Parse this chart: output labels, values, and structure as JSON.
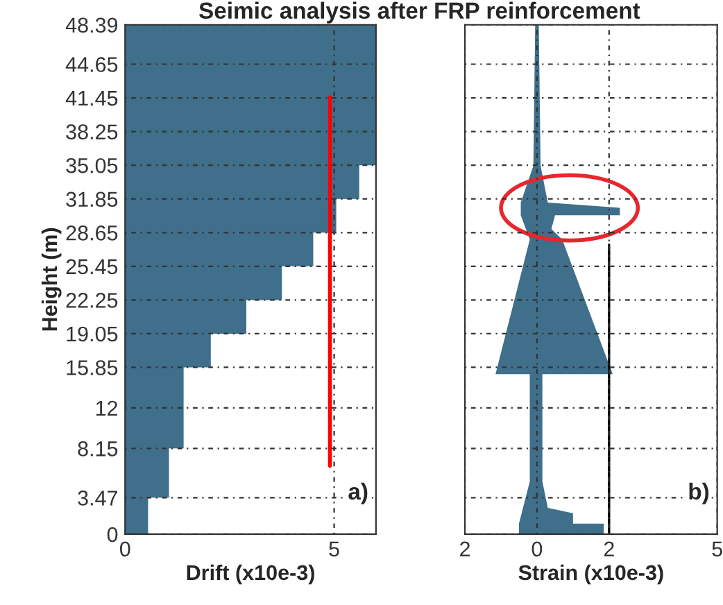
{
  "chart_data": [
    {
      "type": "area",
      "title": "Seimic analysis after FRP reinforcement",
      "xlabel": "Drift (x10e-3)",
      "ylabel": "Height (m)",
      "xlim": [
        0,
        6
      ],
      "xticks": [
        0,
        5
      ],
      "ylim": [
        0,
        48.39
      ],
      "yticks": [
        0,
        3.47,
        8.15,
        12,
        15.85,
        19.05,
        22.25,
        25.45,
        28.65,
        31.85,
        35.05,
        38.25,
        41.45,
        44.65,
        48.39
      ],
      "grid": true,
      "annotations": [
        "a)"
      ],
      "series": [
        {
          "color": "#3f6f8a",
          "x": [
            0,
            0.55,
            0.55,
            1.05,
            1.05,
            1.4,
            1.4,
            2.05,
            2.05,
            2.9,
            2.9,
            3.75,
            3.75,
            4.5,
            4.5,
            5.05,
            5.05,
            5.6,
            5.6,
            6,
            6,
            0
          ],
          "values": [
            0,
            0,
            3.47,
            3.47,
            8.15,
            8.15,
            15.85,
            15.85,
            19.05,
            19.05,
            22.25,
            22.25,
            25.45,
            25.45,
            28.65,
            28.65,
            31.85,
            31.85,
            35.05,
            35.05,
            48.39,
            48.39
          ]
        },
        {
          "type": "line",
          "color": "#ff0000",
          "x": [
            4.9,
            4.9
          ],
          "values": [
            6.5,
            41.5
          ]
        }
      ]
    },
    {
      "type": "area",
      "xlabel": "Strain (x10e-3)",
      "xlim": [
        -2,
        5
      ],
      "xticks": [
        {
          "value": -2,
          "label": "2"
        },
        0,
        2,
        5
      ],
      "ylim": [
        0,
        48.39
      ],
      "yticks": [
        0,
        3.47,
        8.15,
        12,
        15.85,
        19.05,
        22.25,
        25.45,
        28.65,
        31.85,
        35.05,
        38.25,
        41.45,
        44.65,
        48.39
      ],
      "grid": true,
      "tick_labels": "x",
      "annotations": [
        "b)"
      ],
      "series": [
        {
          "color": "#3f6f8a",
          "x": [
            -0.5,
            1.85,
            1.85,
            1.0,
            1.0,
            0.3,
            0.15,
            0.15,
            2.1,
            0.7,
            0.4,
            0.5,
            2.3,
            2.3,
            0.3,
            0.1,
            0.05,
            -0.05,
            -0.1,
            -0.45,
            -0.45,
            -0.2,
            -1.15,
            -0.2,
            -0.2,
            -0.5
          ],
          "values": [
            0,
            0,
            1,
            1,
            2,
            2.5,
            5,
            15.2,
            15.2,
            28,
            29,
            30.3,
            30.3,
            31,
            31.5,
            35,
            48.39,
            48.39,
            35,
            31.5,
            30.3,
            28,
            15.2,
            15.2,
            5,
            1
          ]
        },
        {
          "type": "line",
          "color": "#000000",
          "x": [
            2,
            2
          ],
          "values": [
            0,
            27.5
          ]
        }
      ]
    }
  ]
}
